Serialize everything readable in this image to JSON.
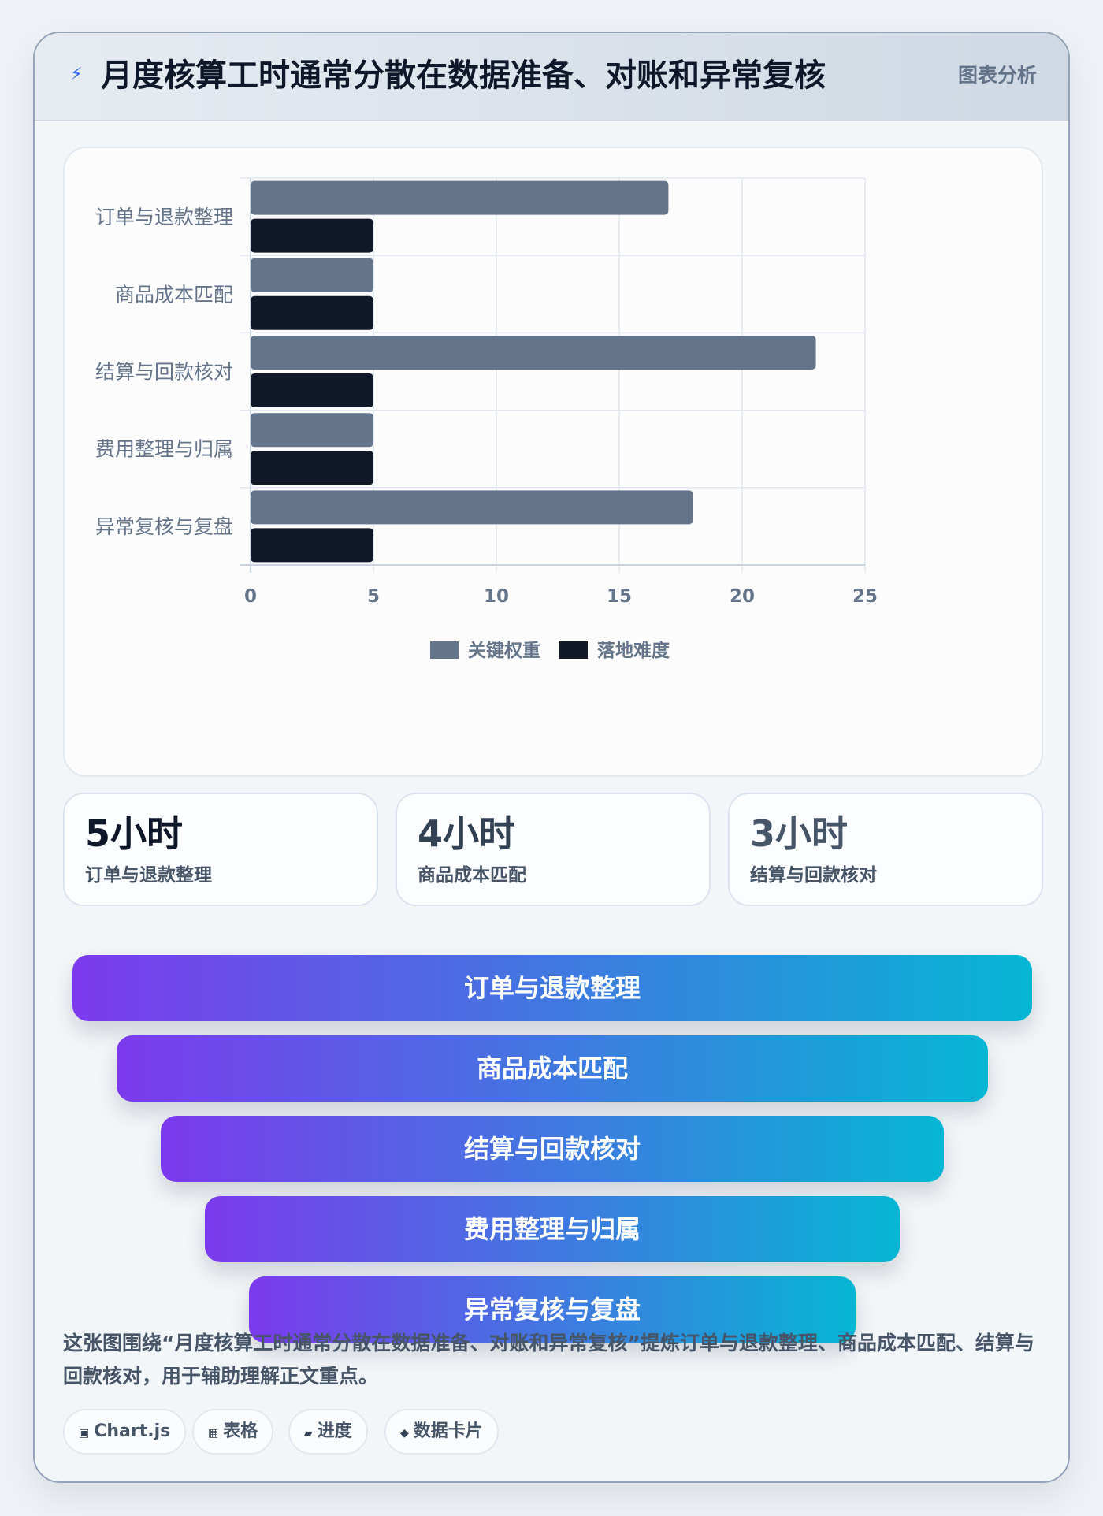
{
  "header": {
    "icon": "lightning-icon",
    "title": "月度核算工时通常分散在数据准备、对账和异常复核",
    "tag": "图表分析"
  },
  "chart_data": {
    "type": "bar",
    "orientation": "horizontal",
    "categories": [
      "订单与退款整理",
      "商品成本匹配",
      "结算与回款核对",
      "费用整理与归属",
      "异常复核与复盘"
    ],
    "series": [
      {
        "name": "关键权重",
        "color": "#64748b",
        "values": [
          17,
          5,
          23,
          5,
          18
        ]
      },
      {
        "name": "落地难度",
        "color": "#111827",
        "values": [
          5,
          5,
          5,
          5,
          5
        ]
      }
    ],
    "xlim": [
      0,
      25
    ],
    "xticks": [
      0,
      5,
      10,
      15,
      20,
      25
    ],
    "grid": true,
    "legend_position": "bottom"
  },
  "stats": [
    {
      "value": "5小时",
      "label": "订单与退款整理",
      "color": "#0f172a"
    },
    {
      "value": "4小时",
      "label": "商品成本匹配",
      "color": "#334155"
    },
    {
      "value": "3小时",
      "label": "结算与回款核对",
      "color": "#475569"
    }
  ],
  "funnel": [
    "订单与退款整理",
    "商品成本匹配",
    "结算与回款核对",
    "费用整理与归属",
    "异常复核与复盘"
  ],
  "description": "这张图围绕“月度核算工时通常分散在数据准备、对账和异常复核”提炼订单与退款整理、商品成本匹配、结算与回款核对，用于辅助理解正文重点。",
  "chips": [
    {
      "icon": "chart-icon",
      "glyph": "▣",
      "label": "Chart.js"
    },
    {
      "icon": "table-icon",
      "glyph": "▦",
      "label": "表格"
    },
    {
      "icon": "progress-icon",
      "glyph": "▰",
      "label": "进度"
    },
    {
      "icon": "diamond-icon",
      "glyph": "◆",
      "label": "数据卡片"
    }
  ]
}
